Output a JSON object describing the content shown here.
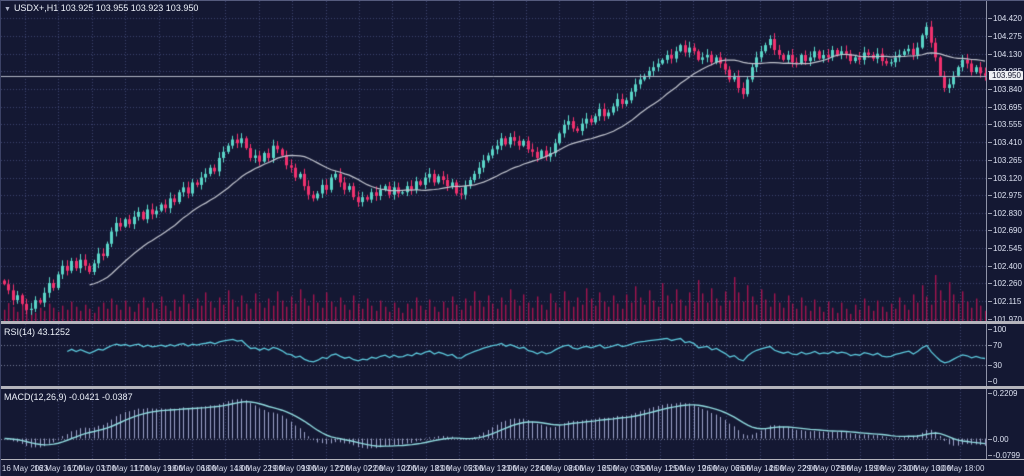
{
  "chart": {
    "dropdown_icon": "▼",
    "title": "USDX+,H1 103.925 103.955 103.923 103.950"
  },
  "main_pane": {
    "current_price_label": "103.950"
  },
  "rsi_pane": {
    "label": "RSI(14) 43.1252",
    "scale_labels": [
      "100",
      "70",
      "30",
      "0"
    ],
    "scale_values": [
      100,
      70,
      30,
      0
    ]
  },
  "macd_pane": {
    "label": "MACD(12,26,9) -0.0421 -0.0387",
    "scale_labels": [
      "0.2209",
      "0.00",
      "-0.0799"
    ],
    "scale_values": [
      0.2209,
      0,
      -0.0799
    ]
  },
  "colors": {
    "background": "#141833",
    "bullish": "#5ad5c8",
    "bearish": "#f0316e",
    "volume": "#a1154f",
    "moving_average": "#c0c3cd",
    "rsi_line": "#5cc8dc",
    "rsi_levels": "#777d98",
    "macd_signal": "#8fd9de",
    "macd_histogram": "#9ba1c8",
    "grid": "#3d4470",
    "separator": "#b4b4bc",
    "axis_text": "#dde2f2",
    "current_price_line": "#b0b4c4"
  },
  "chart_data": {
    "type": "candlestick",
    "symbol": "USDX+",
    "timeframe": "H1",
    "current_ohlc": {
      "open": 103.925,
      "high": 103.955,
      "low": 103.923,
      "close": 103.95
    },
    "current_price": 103.95,
    "ylim": [
      101.95,
      104.56
    ],
    "price_gridlines": [
      104.42,
      104.275,
      104.13,
      103.985,
      103.84,
      103.695,
      103.555,
      103.41,
      103.265,
      103.12,
      102.975,
      102.83,
      102.69,
      102.545,
      102.4,
      102.26,
      102.115,
      101.97
    ],
    "closes": [
      102.25,
      102.2,
      102.12,
      102.16,
      102.09,
      102.04,
      102.05,
      102.12,
      102.1,
      102.18,
      102.26,
      102.22,
      102.33,
      102.4,
      102.36,
      102.44,
      102.38,
      102.45,
      102.4,
      102.35,
      102.42,
      102.5,
      102.48,
      102.58,
      102.68,
      102.75,
      102.72,
      102.78,
      102.74,
      102.8,
      102.84,
      102.78,
      102.86,
      102.82,
      102.85,
      102.9,
      102.87,
      102.95,
      102.92,
      103.0,
      103.04,
      102.99,
      103.08,
      103.06,
      103.12,
      103.15,
      103.2,
      103.17,
      103.28,
      103.33,
      103.38,
      103.43,
      103.4,
      103.44,
      103.36,
      103.28,
      103.3,
      103.25,
      103.32,
      103.28,
      103.38,
      103.35,
      103.3,
      103.22,
      103.2,
      103.12,
      103.15,
      103.05,
      102.98,
      102.95,
      102.99,
      103.06,
      103.02,
      103.12,
      103.15,
      103.08,
      103.02,
      103.05,
      102.96,
      102.92,
      102.96,
      102.94,
      103.0,
      102.97,
      103.02,
      103.05,
      102.98,
      103.04,
      102.99,
      103.0,
      103.05,
      103.02,
      103.09,
      103.06,
      103.12,
      103.15,
      103.08,
      103.13,
      103.1,
      103.05,
      103.08,
      102.99,
      102.98,
      103.05,
      103.1,
      103.15,
      103.2,
      103.26,
      103.3,
      103.35,
      103.38,
      103.44,
      103.39,
      103.45,
      103.42,
      103.38,
      103.42,
      103.35,
      103.33,
      103.28,
      103.34,
      103.29,
      103.32,
      103.4,
      103.48,
      103.55,
      103.58,
      103.52,
      103.5,
      103.56,
      103.6,
      103.57,
      103.62,
      103.68,
      103.62,
      103.65,
      103.7,
      103.76,
      103.72,
      103.75,
      103.82,
      103.88,
      103.92,
      103.95,
      103.99,
      104.02,
      104.05,
      104.08,
      104.12,
      104.09,
      104.15,
      104.2,
      104.14,
      104.18,
      104.15,
      104.08,
      104.1,
      104.12,
      104.06,
      104.1,
      104.05,
      104.0,
      103.92,
      103.95,
      103.85,
      103.8,
      103.92,
      104.02,
      104.1,
      104.15,
      104.2,
      104.25,
      104.16,
      104.12,
      104.08,
      104.12,
      104.06,
      104.05,
      104.12,
      104.07,
      104.1,
      104.15,
      104.09,
      104.12,
      104.1,
      104.16,
      104.12,
      104.15,
      104.13,
      104.07,
      104.1,
      104.08,
      104.14,
      104.12,
      104.09,
      104.13,
      104.07,
      104.05,
      104.06,
      104.1,
      104.12,
      104.15,
      104.17,
      104.12,
      104.18,
      104.28,
      104.35,
      104.22,
      104.1,
      103.95,
      103.85,
      103.88,
      103.95,
      104.02,
      104.08,
      104.05,
      103.98,
      104.02,
      103.97,
      103.95
    ],
    "volumes": [
      22,
      35,
      28,
      18,
      40,
      30,
      24,
      16,
      26,
      20,
      34,
      26,
      18,
      30,
      22,
      38,
      28,
      20,
      32,
      24,
      16,
      28,
      36,
      24,
      44,
      32,
      22,
      40,
      28,
      18,
      34,
      46,
      26,
      36,
      24,
      48,
      30,
      20,
      42,
      28,
      52,
      34,
      24,
      44,
      30,
      56,
      38,
      26,
      46,
      32,
      60,
      42,
      28,
      50,
      34,
      24,
      54,
      36,
      26,
      44,
      30,
      58,
      40,
      28,
      48,
      34,
      62,
      44,
      30,
      52,
      36,
      26,
      56,
      38,
      28,
      46,
      32,
      22,
      50,
      34,
      24,
      44,
      30,
      20,
      40,
      28,
      18,
      36,
      26,
      16,
      34,
      24,
      46,
      30,
      22,
      42,
      28,
      18,
      38,
      26,
      48,
      32,
      22,
      44,
      30,
      58,
      40,
      28,
      50,
      34,
      24,
      46,
      32,
      62,
      42,
      30,
      52,
      36,
      26,
      48,
      32,
      22,
      54,
      36,
      26,
      58,
      40,
      28,
      46,
      32,
      64,
      44,
      30,
      56,
      38,
      28,
      50,
      34,
      24,
      52,
      36,
      68,
      46,
      32,
      60,
      40,
      28,
      74,
      50,
      34,
      62,
      42,
      30,
      56,
      38,
      80,
      54,
      36,
      64,
      44,
      30,
      58,
      40,
      86,
      56,
      38,
      70,
      48,
      32,
      62,
      42,
      28,
      54,
      36,
      26,
      50,
      34,
      24,
      46,
      30,
      20,
      42,
      28,
      18,
      38,
      26,
      16,
      36,
      24,
      14,
      32,
      22,
      44,
      30,
      20,
      40,
      28,
      18,
      34,
      24,
      46,
      32,
      22,
      52,
      36,
      70,
      48,
      32,
      90,
      60,
      40,
      76,
      52,
      34,
      58,
      38,
      26,
      44,
      30,
      20
    ],
    "overlays": [
      {
        "name": "SMA",
        "period": 20
      }
    ],
    "indicators": [
      {
        "name": "RSI",
        "period": 14,
        "value": 43.1252,
        "levels": [
          70,
          30
        ],
        "range": [
          0,
          100
        ]
      },
      {
        "name": "MACD",
        "fast": 12,
        "slow": 26,
        "signal": 9,
        "value": -0.0421,
        "signal_value": -0.0387,
        "scale": [
          -0.0799,
          0.2209
        ]
      }
    ],
    "x_axis_labels": [
      "16 May 2023",
      "16 May 16:00",
      "17 May 03:00",
      "17 May 11:00",
      "17 May 19:00",
      "18 May 06:00",
      "18 May 14:00",
      "18 May 22:00",
      "19 May 09:00",
      "19 May 17:00",
      "22 May 02:00",
      "22 May 10:00",
      "22 May 18:00",
      "23 May 05:00",
      "23 May 13:00",
      "23 May 21:00",
      "24 May 08:00",
      "24 May 16:00",
      "25 May 03:00",
      "25 May 11:00",
      "25 May 19:00",
      "26 May 06:00",
      "26 May 14:00",
      "26 May 22:00",
      "29 May 07:00",
      "29 May 15:00",
      "29 May 23:00",
      "30 May 10:00",
      "30 May 18:00"
    ]
  }
}
